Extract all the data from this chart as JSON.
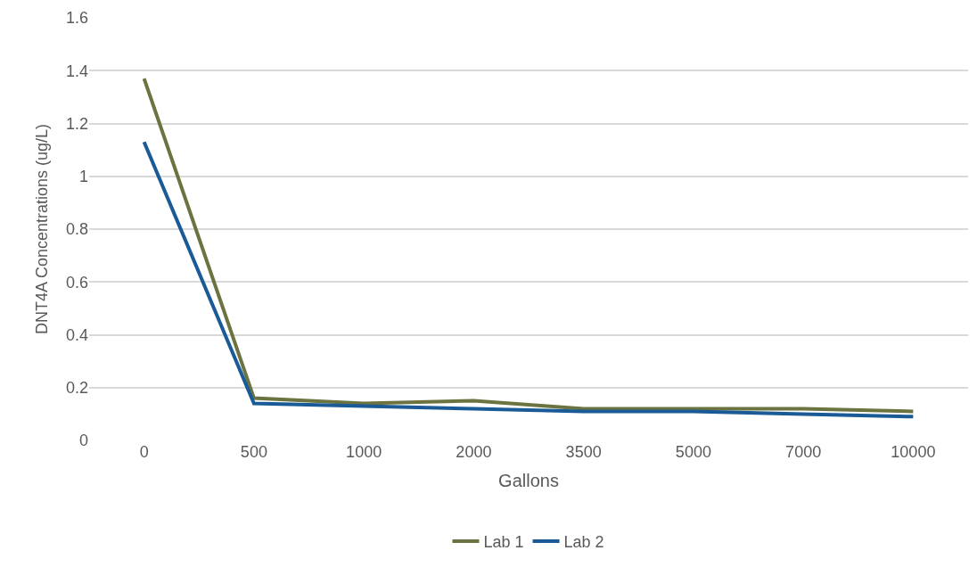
{
  "chart_data": {
    "type": "line",
    "xlabel": "Gallons",
    "ylabel": "DNT4A Concentrations (ug/L)",
    "categories": [
      "0",
      "500",
      "1000",
      "2000",
      "3500",
      "5000",
      "7000",
      "10000"
    ],
    "series": [
      {
        "name": "Lab 1",
        "color": "#6b7340",
        "values": [
          1.37,
          0.16,
          0.14,
          0.15,
          0.12,
          0.12,
          0.12,
          0.11
        ]
      },
      {
        "name": "Lab 2",
        "color": "#1a5a96",
        "values": [
          1.13,
          0.14,
          0.13,
          0.12,
          0.11,
          0.11,
          0.1,
          0.09
        ]
      }
    ],
    "ylim": [
      0,
      1.6
    ],
    "yticks": [
      0,
      {
        "value": 0.2,
        "label": "0.2"
      },
      {
        "value": 0.4,
        "label": "0.4"
      },
      {
        "value": 0.6,
        "label": "0.6"
      },
      {
        "value": 0.8,
        "label": "0.8"
      },
      1,
      {
        "value": 1.2,
        "label": "1.2"
      },
      {
        "value": 1.4,
        "label": "1.4"
      },
      {
        "value": 1.6,
        "label": "1.6"
      }
    ],
    "grid": "y",
    "legend": "bottom",
    "marker": "none",
    "line_style": "solid"
  }
}
